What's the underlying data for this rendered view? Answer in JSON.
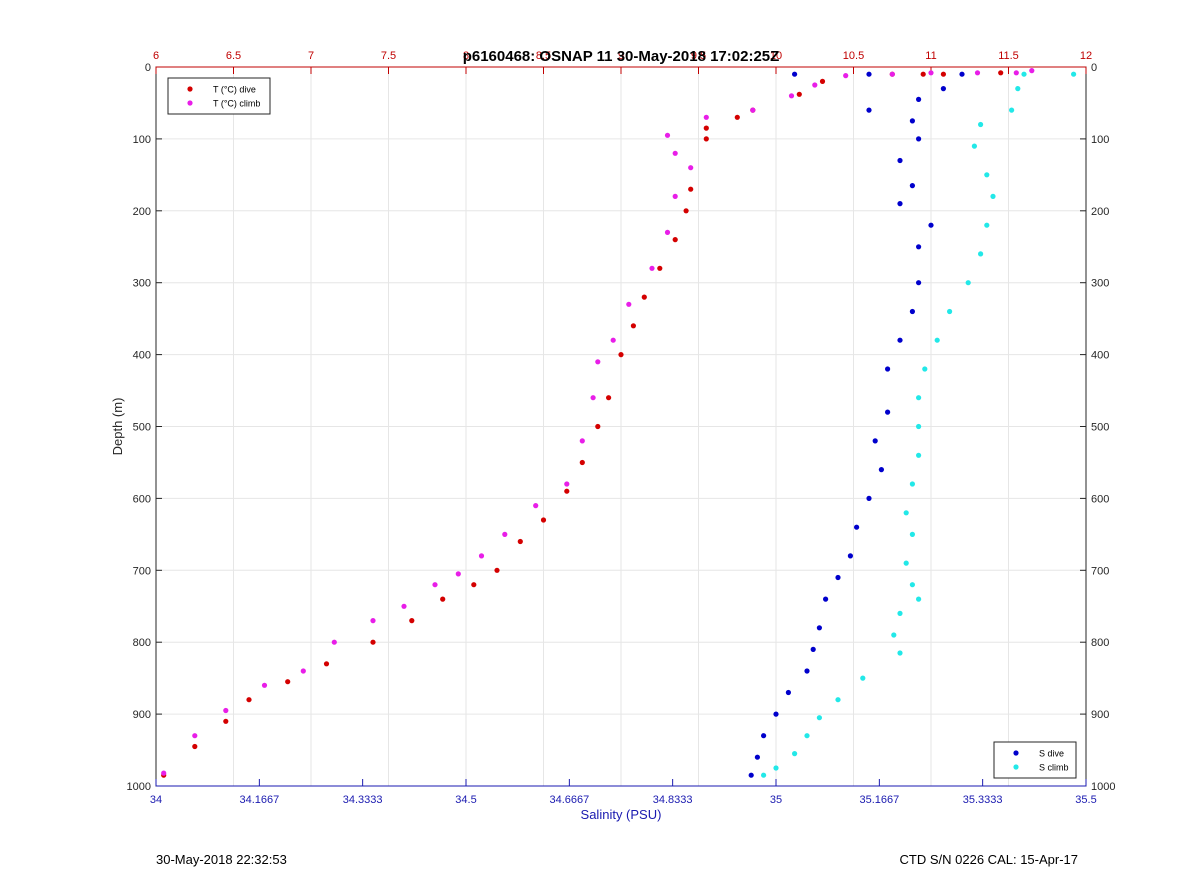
{
  "chart_data": {
    "type": "scatter",
    "title": "p6160468: OSNAP 11 30-May-2018 17:02:25Z",
    "ylabel": "Depth (m)",
    "xlabel_bottom": "Salinity (PSU)",
    "xlabel_top": "",
    "y_reversed": true,
    "ylim": [
      0,
      1000
    ],
    "y_ticks": [
      "0",
      "100",
      "200",
      "300",
      "400",
      "500",
      "600",
      "700",
      "800",
      "900",
      "1000"
    ],
    "x_bottom_lim": [
      34,
      35.5
    ],
    "x_bottom_ticks": [
      "34",
      "34.1667",
      "34.3333",
      "34.5",
      "34.6667",
      "34.8333",
      "35",
      "35.1667",
      "35.3333",
      "35.5"
    ],
    "x_top_lim": [
      6,
      12
    ],
    "x_top_ticks": [
      "6",
      "6.5",
      "7",
      "7.5",
      "8",
      "8.5",
      "9",
      "9.5",
      "10",
      "10.5",
      "11",
      "11.5",
      "12"
    ],
    "grid": true,
    "legend_placement": [
      "top-left",
      "bottom-right"
    ],
    "legend_temp": [
      "T (°C) dive",
      "T (°C) climb"
    ],
    "legend_sal": [
      "S dive",
      "S climb"
    ],
    "series": [
      {
        "name": "T (°C) dive",
        "axis": "top",
        "color": "#d40000",
        "points": [
          [
            11.45,
            8
          ],
          [
            11.08,
            10
          ],
          [
            10.95,
            10
          ],
          [
            10.75,
            10
          ],
          [
            10.3,
            20
          ],
          [
            10.15,
            38
          ],
          [
            9.85,
            60
          ],
          [
            9.75,
            70
          ],
          [
            9.55,
            85
          ],
          [
            9.55,
            100
          ],
          [
            9.45,
            170
          ],
          [
            9.42,
            200
          ],
          [
            9.35,
            240
          ],
          [
            9.25,
            280
          ],
          [
            9.15,
            320
          ],
          [
            9.08,
            360
          ],
          [
            9.0,
            400
          ],
          [
            8.92,
            460
          ],
          [
            8.85,
            500
          ],
          [
            8.75,
            550
          ],
          [
            8.65,
            590
          ],
          [
            8.5,
            630
          ],
          [
            8.35,
            660
          ],
          [
            8.2,
            700
          ],
          [
            8.05,
            720
          ],
          [
            7.85,
            740
          ],
          [
            7.65,
            770
          ],
          [
            7.4,
            800
          ],
          [
            7.1,
            830
          ],
          [
            6.85,
            855
          ],
          [
            6.6,
            880
          ],
          [
            6.45,
            910
          ],
          [
            6.25,
            945
          ],
          [
            6.05,
            985
          ]
        ]
      },
      {
        "name": "T (°C) climb",
        "axis": "top",
        "color": "#e81ee8",
        "points": [
          [
            11.65,
            5
          ],
          [
            11.55,
            8
          ],
          [
            11.3,
            8
          ],
          [
            11.0,
            8
          ],
          [
            10.75,
            10
          ],
          [
            10.45,
            12
          ],
          [
            10.25,
            25
          ],
          [
            10.1,
            40
          ],
          [
            9.85,
            60
          ],
          [
            9.55,
            70
          ],
          [
            9.3,
            95
          ],
          [
            9.35,
            120
          ],
          [
            9.45,
            140
          ],
          [
            9.35,
            180
          ],
          [
            9.3,
            230
          ],
          [
            9.2,
            280
          ],
          [
            9.05,
            330
          ],
          [
            8.95,
            380
          ],
          [
            8.85,
            410
          ],
          [
            8.82,
            460
          ],
          [
            8.75,
            520
          ],
          [
            8.65,
            580
          ],
          [
            8.45,
            610
          ],
          [
            8.25,
            650
          ],
          [
            8.1,
            680
          ],
          [
            7.95,
            705
          ],
          [
            7.8,
            720
          ],
          [
            7.6,
            750
          ],
          [
            7.4,
            770
          ],
          [
            7.15,
            800
          ],
          [
            6.95,
            840
          ],
          [
            6.7,
            860
          ],
          [
            6.45,
            895
          ],
          [
            6.25,
            930
          ],
          [
            6.05,
            982
          ]
        ]
      },
      {
        "name": "S dive",
        "axis": "bottom",
        "color": "#0000cc",
        "points": [
          [
            35.03,
            10
          ],
          [
            35.15,
            10
          ],
          [
            35.3,
            10
          ],
          [
            35.27,
            30
          ],
          [
            35.23,
            45
          ],
          [
            35.15,
            60
          ],
          [
            35.22,
            75
          ],
          [
            35.23,
            100
          ],
          [
            35.2,
            130
          ],
          [
            35.22,
            165
          ],
          [
            35.2,
            190
          ],
          [
            35.25,
            220
          ],
          [
            35.23,
            250
          ],
          [
            35.23,
            300
          ],
          [
            35.22,
            340
          ],
          [
            35.2,
            380
          ],
          [
            35.18,
            420
          ],
          [
            35.18,
            480
          ],
          [
            35.16,
            520
          ],
          [
            35.17,
            560
          ],
          [
            35.15,
            600
          ],
          [
            35.13,
            640
          ],
          [
            35.12,
            680
          ],
          [
            35.1,
            710
          ],
          [
            35.08,
            740
          ],
          [
            35.07,
            780
          ],
          [
            35.06,
            810
          ],
          [
            35.05,
            840
          ],
          [
            35.02,
            870
          ],
          [
            35.0,
            900
          ],
          [
            34.98,
            930
          ],
          [
            34.97,
            960
          ],
          [
            34.96,
            985
          ]
        ]
      },
      {
        "name": "S climb",
        "axis": "bottom",
        "color": "#22e8e8",
        "points": [
          [
            35.4,
            10
          ],
          [
            35.48,
            10
          ],
          [
            35.39,
            30
          ],
          [
            35.38,
            60
          ],
          [
            35.33,
            80
          ],
          [
            35.32,
            110
          ],
          [
            35.34,
            150
          ],
          [
            35.35,
            180
          ],
          [
            35.34,
            220
          ],
          [
            35.33,
            260
          ],
          [
            35.31,
            300
          ],
          [
            35.28,
            340
          ],
          [
            35.26,
            380
          ],
          [
            35.24,
            420
          ],
          [
            35.23,
            460
          ],
          [
            35.23,
            500
          ],
          [
            35.23,
            540
          ],
          [
            35.22,
            580
          ],
          [
            35.21,
            620
          ],
          [
            35.22,
            650
          ],
          [
            35.21,
            690
          ],
          [
            35.22,
            720
          ],
          [
            35.23,
            740
          ],
          [
            35.2,
            760
          ],
          [
            35.19,
            790
          ],
          [
            35.2,
            815
          ],
          [
            35.14,
            850
          ],
          [
            35.1,
            880
          ],
          [
            35.07,
            905
          ],
          [
            35.05,
            930
          ],
          [
            35.03,
            955
          ],
          [
            35.0,
            975
          ],
          [
            34.98,
            985
          ]
        ]
      }
    ]
  },
  "footer": {
    "left": "30-May-2018 22:32:53",
    "right": "CTD S/N 0226  CAL: 15-Apr-17"
  }
}
